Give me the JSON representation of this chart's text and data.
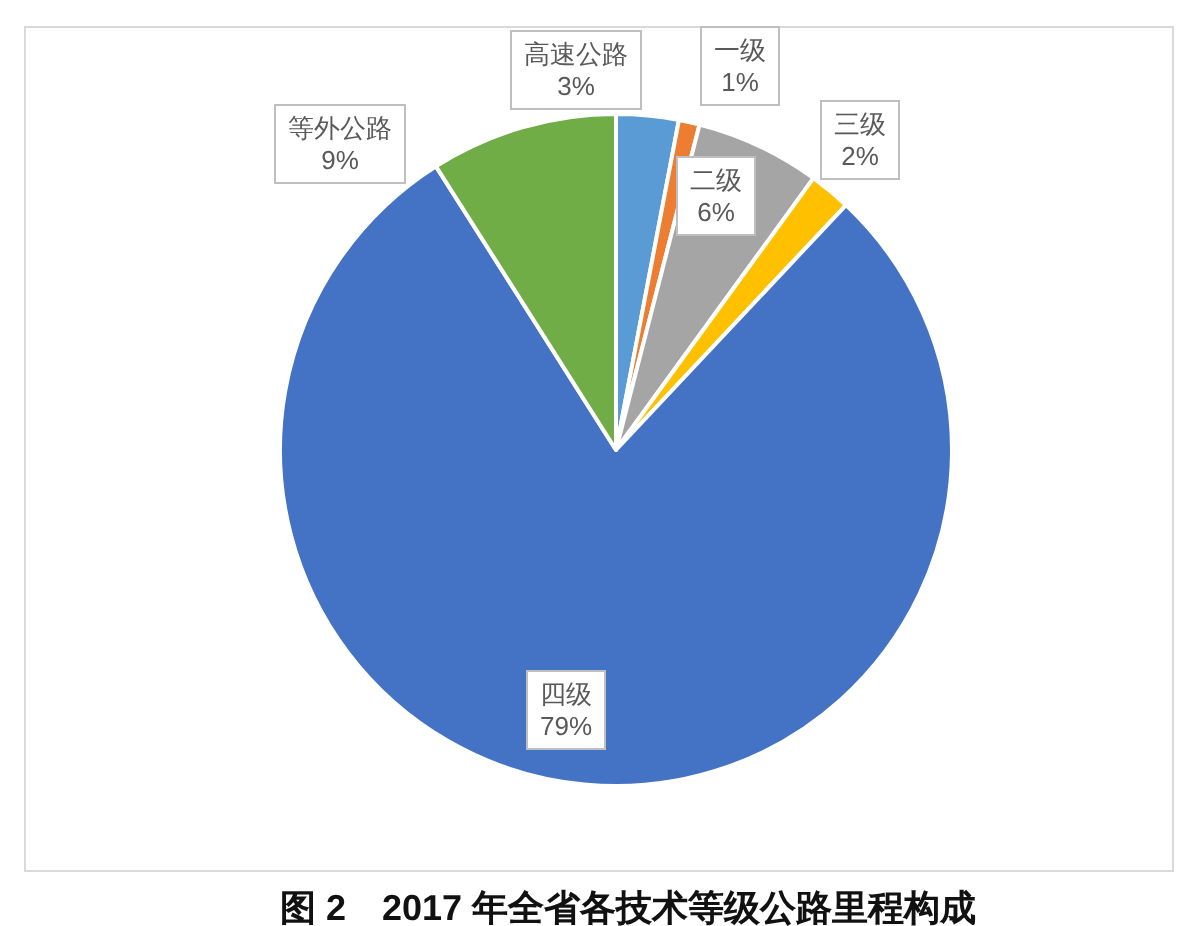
{
  "chart_data": {
    "type": "pie",
    "title": "图 2　2017 年全省各技术等级公路里程构成",
    "categories": [
      "高速公路",
      "一级",
      "二级",
      "三级",
      "四级",
      "等外公路"
    ],
    "values": [
      3,
      1,
      6,
      2,
      79,
      9
    ],
    "value_labels": [
      "3%",
      "1%",
      "6%",
      "2%",
      "79%",
      "9%"
    ],
    "colors": [
      "#5b9bd5",
      "#ed7d31",
      "#a5a5a5",
      "#ffc000",
      "#4472c4",
      "#70ad47"
    ]
  }
}
